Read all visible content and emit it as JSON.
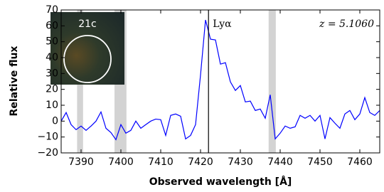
{
  "chart_data": {
    "type": "line",
    "xlabel": "Observed wavelength [Å]",
    "ylabel": "Relative flux",
    "x": [
      7385,
      7386.25,
      7387.5,
      7388.75,
      7390,
      7391.25,
      7392.5,
      7393.75,
      7395,
      7396.25,
      7397.5,
      7398.75,
      7400,
      7401.25,
      7402.5,
      7403.75,
      7405,
      7406.25,
      7407.5,
      7408.75,
      7410,
      7411.25,
      7412.5,
      7413.75,
      7415,
      7416.25,
      7417.5,
      7418.75,
      7420,
      7421.25,
      7422.5,
      7423.75,
      7425,
      7426.25,
      7427.5,
      7428.75,
      7430,
      7431.25,
      7432.5,
      7433.75,
      7435,
      7436.25,
      7437.5,
      7438.75,
      7440,
      7441.25,
      7442.5,
      7443.75,
      7445,
      7446.25,
      7447.5,
      7448.75,
      7450,
      7451.25,
      7452.5,
      7453.75,
      7455,
      7456.25,
      7457.5,
      7458.75,
      7460,
      7461.25,
      7462.5,
      7463.75,
      7465
    ],
    "values": [
      0,
      5.4,
      -2.2,
      -5.4,
      -3.1,
      -5.8,
      -3.1,
      0,
      5.8,
      -4.5,
      -7.2,
      -11.7,
      -2.2,
      -7.6,
      -5.8,
      0,
      -4.5,
      -2.2,
      0,
      1.3,
      0.9,
      -9,
      3.6,
      4.5,
      3.1,
      -11.2,
      -9,
      -2.2,
      29.1,
      63.7,
      51.6,
      51.1,
      35.9,
      36.8,
      24.7,
      19.3,
      22.4,
      12.1,
      12.6,
      6.7,
      7.6,
      1.8,
      16.6,
      -11.2,
      -7.6,
      -3.1,
      -4.5,
      -3.6,
      3.6,
      1.8,
      3.6,
      0,
      3.6,
      -11.2,
      2.2,
      -1.3,
      -4.5,
      4.5,
      6.7,
      0.9,
      4.5,
      14.8,
      5.4,
      3.6,
      6.7
    ],
    "color": "#0000ff",
    "xlim": [
      7385,
      7465
    ],
    "xticks": [
      7390,
      7400,
      7410,
      7420,
      7430,
      7440,
      7450,
      7460
    ],
    "ylim": [
      -20,
      70
    ],
    "yticks": [
      {
        "value": -20,
        "label": "−20"
      },
      {
        "value": -10,
        "label": "−10"
      },
      0,
      10,
      20,
      30,
      40,
      50,
      60,
      70
    ],
    "shaded_regions": [
      [
        7389,
        7390.5
      ],
      [
        7398.4,
        7401.4
      ],
      [
        7437.1,
        7438.9
      ]
    ],
    "vline_x": 7422,
    "vline_label": "Lyα",
    "redshift_label": "z = 5.1060",
    "inset_label": "21c"
  }
}
